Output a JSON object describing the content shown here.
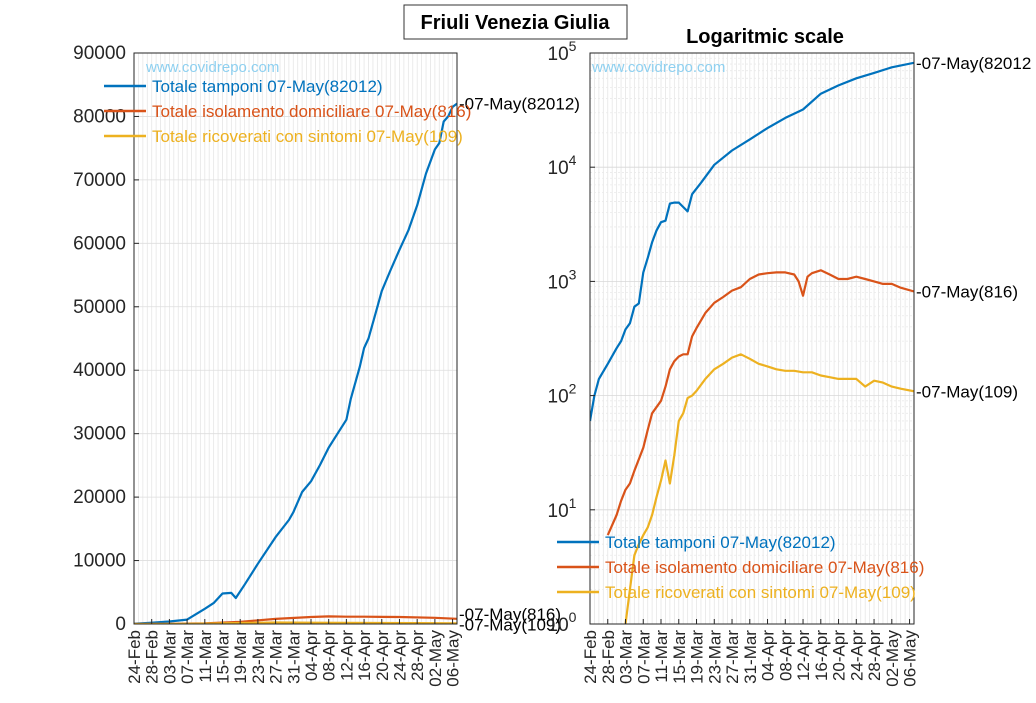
{
  "figure": {
    "super_title": "Friuli Venezia Giulia",
    "watermark": "www.covidrepo.com",
    "colors": {
      "tamponi": "#0072BD",
      "isolamento": "#D95319",
      "ricoverati": "#EDB120",
      "watermark": "#8ED0F0",
      "grid": "#E3E3E3"
    }
  },
  "chart_data": [
    {
      "type": "line",
      "title": "",
      "scale": "linear",
      "ylim": [
        0,
        90000
      ],
      "y_ticks": [
        0,
        10000,
        20000,
        30000,
        40000,
        50000,
        60000,
        70000,
        80000,
        90000
      ],
      "y_tick_labels": [
        "0",
        "10000",
        "20000",
        "30000",
        "40000",
        "50000",
        "60000",
        "70000",
        "80000",
        "90000"
      ],
      "x_tick_labels": [
        "24-Feb",
        "28-Feb",
        "03-Mar",
        "07-Mar",
        "11-Mar",
        "15-Mar",
        "19-Mar",
        "23-Mar",
        "27-Mar",
        "31-Mar",
        "04-Apr",
        "08-Apr",
        "12-Apr",
        "16-Apr",
        "20-Apr",
        "24-Apr",
        "28-Apr",
        "02-May",
        "06-May"
      ],
      "grid": true,
      "legend_position": "top-left",
      "series": [
        {
          "name": "Totale tamponi 07-May(82012)",
          "end_label": "-07-May(82012)",
          "x": [
            "24-Feb",
            "28-Feb",
            "03-Mar",
            "07-Mar",
            "11-Mar",
            "13-Mar",
            "15-Mar",
            "17-Mar",
            "18-Mar",
            "20-Mar",
            "23-Mar",
            "27-Mar",
            "30-Mar",
            "31-Mar",
            "02-Apr",
            "04-Apr",
            "06-Apr",
            "08-Apr",
            "10-Apr",
            "12-Apr",
            "13-Apr",
            "15-Apr",
            "16-Apr",
            "17-Apr",
            "19-Apr",
            "20-Apr",
            "22-Apr",
            "24-Apr",
            "26-Apr",
            "28-Apr",
            "30-Apr",
            "02-May",
            "03-May",
            "04-May",
            "05-May",
            "06-May",
            "07-May"
          ],
          "y": [
            40,
            200,
            400,
            700,
            2400,
            3300,
            4800,
            4900,
            4100,
            6200,
            9500,
            13700,
            16400,
            17600,
            20800,
            22500,
            25000,
            27800,
            30000,
            32200,
            35500,
            40500,
            43500,
            45000,
            50000,
            52500,
            55800,
            59000,
            62000,
            66000,
            71000,
            74800,
            75800,
            79200,
            80000,
            81500,
            82012
          ]
        },
        {
          "name": "Totale isolamento domiciliare 07-May(816)",
          "end_label": "-07-May(816)",
          "x": [
            "24-Feb",
            "03-Mar",
            "11-Mar",
            "19-Mar",
            "27-Mar",
            "04-Apr",
            "08-Apr",
            "12-Apr",
            "16-Apr",
            "24-Apr",
            "02-May",
            "07-May"
          ],
          "y": [
            0,
            20,
            110,
            350,
            800,
            1100,
            1200,
            1150,
            1150,
            1100,
            980,
            816
          ]
        },
        {
          "name": "Totale ricoverati con sintomi 07-May(109)",
          "end_label": "-07-May(109)",
          "x": [
            "24-Feb",
            "03-Mar",
            "11-Mar",
            "19-Mar",
            "27-Mar",
            "04-Apr",
            "12-Apr",
            "20-Apr",
            "28-Apr",
            "07-May"
          ],
          "y": [
            0,
            5,
            60,
            150,
            230,
            200,
            170,
            150,
            140,
            109
          ]
        }
      ]
    },
    {
      "type": "line",
      "title": "Logaritmic scale",
      "scale": "log",
      "ylim": [
        1,
        100000
      ],
      "y_tick_labels": [
        {
          "base": "10",
          "exp": "0"
        },
        {
          "base": "10",
          "exp": "1"
        },
        {
          "base": "10",
          "exp": "2"
        },
        {
          "base": "10",
          "exp": "3"
        },
        {
          "base": "10",
          "exp": "4"
        },
        {
          "base": "10",
          "exp": "5"
        }
      ],
      "x_tick_labels": [
        "24-Feb",
        "28-Feb",
        "03-Mar",
        "07-Mar",
        "11-Mar",
        "15-Mar",
        "19-Mar",
        "23-Mar",
        "27-Mar",
        "31-Mar",
        "04-Apr",
        "08-Apr",
        "12-Apr",
        "16-Apr",
        "20-Apr",
        "24-Apr",
        "28-Apr",
        "02-May",
        "06-May"
      ],
      "grid": true,
      "legend_position": "bottom-left",
      "series": [
        {
          "name": "Totale tamponi 07-May(82012)",
          "end_label": "-07-May(82012",
          "x": [
            "24-Feb",
            "25-Feb",
            "26-Feb",
            "28-Feb",
            "01-Mar",
            "02-Mar",
            "03-Mar",
            "04-Mar",
            "05-Mar",
            "06-Mar",
            "07-Mar",
            "08-Mar",
            "09-Mar",
            "10-Mar",
            "11-Mar",
            "12-Mar",
            "13-Mar",
            "14-Mar",
            "15-Mar",
            "17-Mar",
            "18-Mar",
            "20-Mar",
            "23-Mar",
            "27-Mar",
            "31-Mar",
            "04-Apr",
            "08-Apr",
            "12-Apr",
            "16-Apr",
            "20-Apr",
            "24-Apr",
            "28-Apr",
            "02-May",
            "07-May"
          ],
          "y": [
            60,
            100,
            140,
            190,
            260,
            300,
            380,
            430,
            600,
            640,
            1200,
            1600,
            2200,
            2800,
            3300,
            3400,
            4800,
            4900,
            4900,
            4100,
            5800,
            7300,
            10500,
            14000,
            17500,
            22000,
            27000,
            32000,
            44000,
            52000,
            60000,
            67000,
            75000,
            82012
          ]
        },
        {
          "name": "Totale isolamento domiciliare 07-May(816)",
          "end_label": "-07-May(816)",
          "x": [
            "28-Feb",
            "01-Mar",
            "02-Mar",
            "03-Mar",
            "04-Mar",
            "05-Mar",
            "07-Mar",
            "08-Mar",
            "09-Mar",
            "11-Mar",
            "12-Mar",
            "13-Mar",
            "14-Mar",
            "15-Mar",
            "16-Mar",
            "17-Mar",
            "18-Mar",
            "19-Mar",
            "21-Mar",
            "23-Mar",
            "25-Mar",
            "27-Mar",
            "29-Mar",
            "31-Mar",
            "02-Apr",
            "04-Apr",
            "06-Apr",
            "08-Apr",
            "10-Apr",
            "11-Apr",
            "12-Apr",
            "13-Apr",
            "14-Apr",
            "16-Apr",
            "18-Apr",
            "20-Apr",
            "22-Apr",
            "24-Apr",
            "26-Apr",
            "28-Apr",
            "30-Apr",
            "02-May",
            "04-May",
            "07-May"
          ],
          "y": [
            6,
            9,
            12,
            15,
            17,
            22,
            35,
            50,
            70,
            90,
            120,
            170,
            200,
            220,
            230,
            230,
            330,
            390,
            530,
            650,
            730,
            830,
            890,
            1050,
            1150,
            1180,
            1200,
            1200,
            1150,
            1000,
            750,
            1100,
            1180,
            1250,
            1150,
            1050,
            1050,
            1100,
            1050,
            1000,
            950,
            950,
            880,
            816
          ]
        },
        {
          "name": "Totale ricoverati con sintomi 07-May(109)",
          "end_label": "-07-May(109)",
          "x": [
            "03-Mar",
            "04-Mar",
            "05-Mar",
            "06-Mar",
            "07-Mar",
            "08-Mar",
            "09-Mar",
            "10-Mar",
            "11-Mar",
            "12-Mar",
            "13-Mar",
            "14-Mar",
            "15-Mar",
            "16-Mar",
            "17-Mar",
            "18-Mar",
            "19-Mar",
            "21-Mar",
            "23-Mar",
            "25-Mar",
            "27-Mar",
            "29-Mar",
            "31-Mar",
            "02-Apr",
            "04-Apr",
            "06-Apr",
            "08-Apr",
            "10-Apr",
            "12-Apr",
            "14-Apr",
            "16-Apr",
            "18-Apr",
            "20-Apr",
            "22-Apr",
            "24-Apr",
            "26-Apr",
            "28-Apr",
            "30-Apr",
            "02-May",
            "04-May",
            "07-May"
          ],
          "y": [
            1,
            2,
            4,
            5,
            6,
            7,
            9,
            13,
            18,
            27,
            17,
            30,
            60,
            70,
            95,
            100,
            110,
            140,
            170,
            190,
            215,
            230,
            210,
            190,
            180,
            170,
            165,
            165,
            160,
            160,
            150,
            145,
            140,
            140,
            140,
            120,
            135,
            130,
            120,
            115,
            109
          ]
        }
      ]
    }
  ]
}
